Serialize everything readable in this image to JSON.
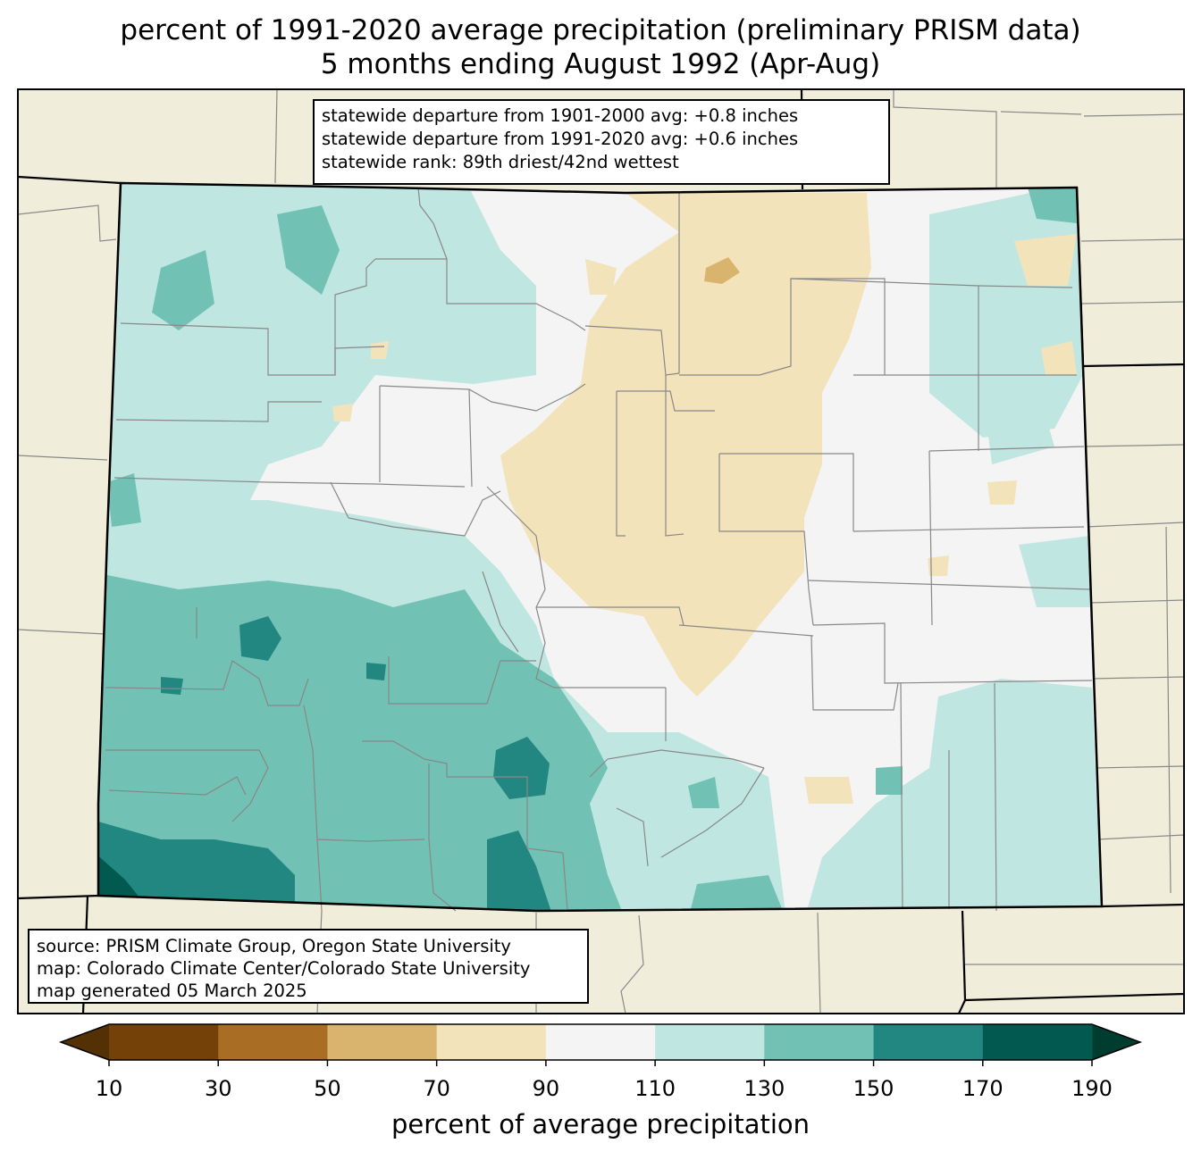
{
  "title": {
    "line1": "percent of 1991-2020 average precipitation (preliminary PRISM data)",
    "line2": "5 months ending August 1992 (Apr-Aug)"
  },
  "stats": {
    "line1": "statewide departure from 1901-2000 avg: +0.8 inches",
    "line2": "statewide departure from 1991-2020 avg: +0.6 inches",
    "line3": "statewide rank: 89th driest/42nd wettest"
  },
  "credits": {
    "line1": "source: PRISM Climate Group, Oregon State University",
    "line2": "map: Colorado Climate Center/Colorado State University",
    "line3": "map generated 05 March 2025"
  },
  "colorbar": {
    "label": "percent of average precipitation",
    "ticks": [
      "10",
      "30",
      "50",
      "70",
      "90",
      "110",
      "130",
      "150",
      "170",
      "190"
    ],
    "colors": {
      "under": "#543005",
      "bins": [
        "#744108",
        "#a96d24",
        "#d9b46e",
        "#f3e3bb",
        "#f4f4f4",
        "#c0e6e1",
        "#71c1b4",
        "#228780",
        "#01594f"
      ],
      "over": "#003c30"
    }
  },
  "map_colors": {
    "land_outside": "#f0eedb",
    "under_70": "#d9b46e",
    "70_90": "#f3e3bb",
    "90_110": "#f4f4f4",
    "110_130": "#c0e6e1",
    "130_150": "#71c1b4",
    "150_170": "#228780",
    "170_190": "#01594f",
    "over_190": "#003c30"
  }
}
